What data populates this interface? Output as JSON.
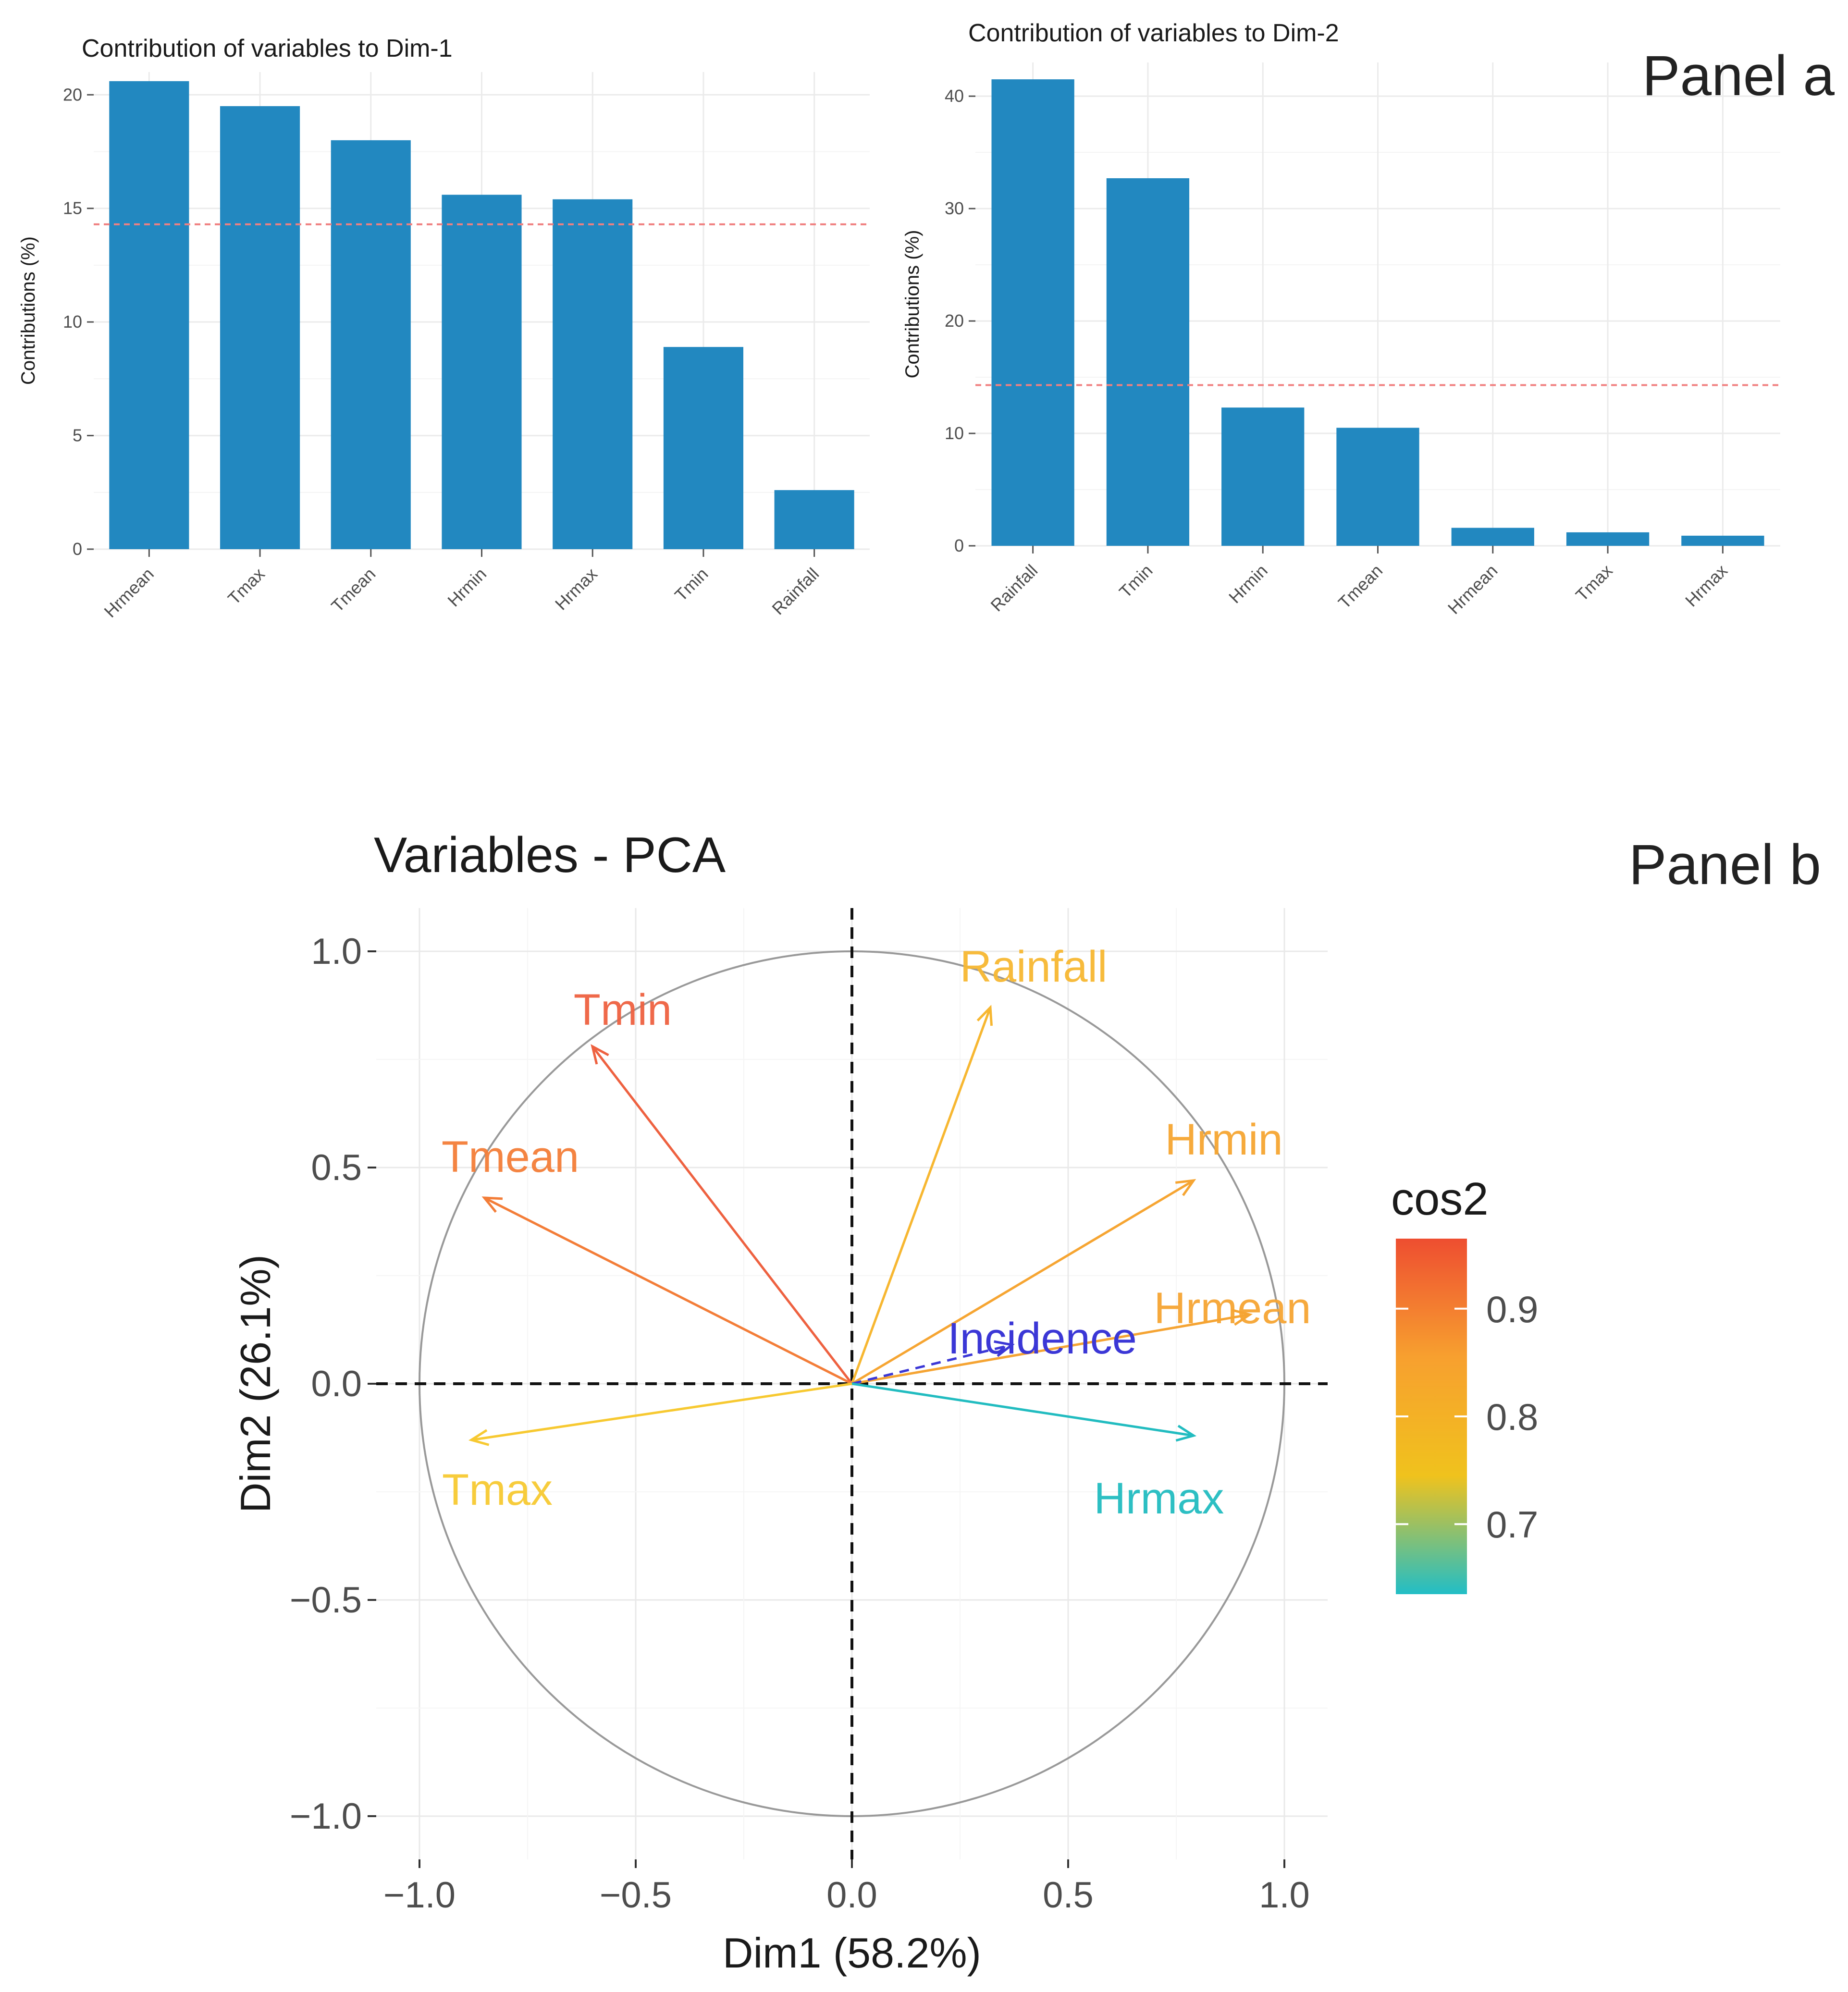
{
  "panel_labels": {
    "a": "Panel a",
    "b": "Panel b"
  },
  "colors": {
    "bar": "#2288c0",
    "refline": "#f08080",
    "grid": "#ebebeb",
    "axis_text": "#4d4d4d",
    "circle": "#999999"
  },
  "chart_data": [
    {
      "type": "bar",
      "title": "Contribution of variables to Dim-1",
      "ylabel": "Contributions (%)",
      "xlabel": "",
      "categories": [
        "Hrmean",
        "Tmax",
        "Tmean",
        "Hrmin",
        "Hrmax",
        "Tmin",
        "Rainfall"
      ],
      "values": [
        20.6,
        19.5,
        18.0,
        15.6,
        15.4,
        8.9,
        2.6
      ],
      "ylim": [
        0,
        21
      ],
      "yticks": [
        0,
        5,
        10,
        15,
        20
      ],
      "ytick_labels": [
        "0",
        "5",
        "10",
        "15",
        "20"
      ],
      "reference_line": 14.3,
      "grid": true
    },
    {
      "type": "bar",
      "title": "Contribution of variables to Dim-2",
      "ylabel": "Contributions (%)",
      "xlabel": "",
      "categories": [
        "Rainfall",
        "Tmin",
        "Hrmin",
        "Tmean",
        "Hrmean",
        "Tmax",
        "Hrmax"
      ],
      "values": [
        41.5,
        32.7,
        12.3,
        10.5,
        1.6,
        1.2,
        0.9
      ],
      "ylim": [
        0,
        43
      ],
      "yticks": [
        0,
        10,
        20,
        30,
        40
      ],
      "ytick_labels": [
        "0",
        "10",
        "20",
        "30",
        "40"
      ],
      "reference_line": 14.3,
      "grid": true
    },
    {
      "type": "scatter",
      "subtype": "pca_variable_correlation_circle",
      "title": "Variables - PCA",
      "xlabel": "Dim1 (58.2%)",
      "ylabel": "Dim2 (26.1%)",
      "xlim": [
        -1.1,
        1.1
      ],
      "ylim": [
        -1.1,
        1.1
      ],
      "xticks": [
        -1.0,
        -0.5,
        0.0,
        0.5,
        1.0
      ],
      "xtick_labels": [
        "−1.0",
        "−0.5",
        "0.0",
        "0.5",
        "1.0"
      ],
      "yticks": [
        -1.0,
        -0.5,
        0.0,
        0.5,
        1.0
      ],
      "ytick_labels": [
        "−1.0",
        "−0.5",
        "0.0",
        "0.5",
        "1.0"
      ],
      "variables": [
        {
          "name": "Rainfall",
          "x": 0.32,
          "y": 0.87,
          "cos2": 0.86,
          "color": "#f7b731"
        },
        {
          "name": "Tmin",
          "x": -0.6,
          "y": 0.78,
          "cos2": 0.96,
          "color": "#ee6140"
        },
        {
          "name": "Tmean",
          "x": -0.85,
          "y": 0.43,
          "cos2": 0.91,
          "color": "#f37d38"
        },
        {
          "name": "Hrmin",
          "x": 0.79,
          "y": 0.47,
          "cos2": 0.85,
          "color": "#f6a532"
        },
        {
          "name": "Hrmean",
          "x": 0.92,
          "y": 0.16,
          "cos2": 0.87,
          "color": "#f5a433"
        },
        {
          "name": "Incidence",
          "x": 0.37,
          "y": 0.09,
          "supplementary": true,
          "color": "#3b37d6"
        },
        {
          "name": "Hrmax",
          "x": 0.79,
          "y": -0.12,
          "cos2": 0.64,
          "color": "#22bcc0"
        },
        {
          "name": "Tmax",
          "x": -0.88,
          "y": -0.13,
          "cos2": 0.79,
          "color": "#f7c931"
        }
      ],
      "legend": {
        "title": "cos2",
        "position": "right",
        "ticks": [
          0.9,
          0.8,
          0.7
        ],
        "tick_labels": [
          "0.9",
          "0.8",
          "0.7"
        ],
        "range": [
          0.635,
          0.965
        ],
        "gradient": [
          "#ee4e30",
          "#f7a02f",
          "#f0c21d",
          "#22bec6"
        ]
      },
      "grid": true
    }
  ]
}
